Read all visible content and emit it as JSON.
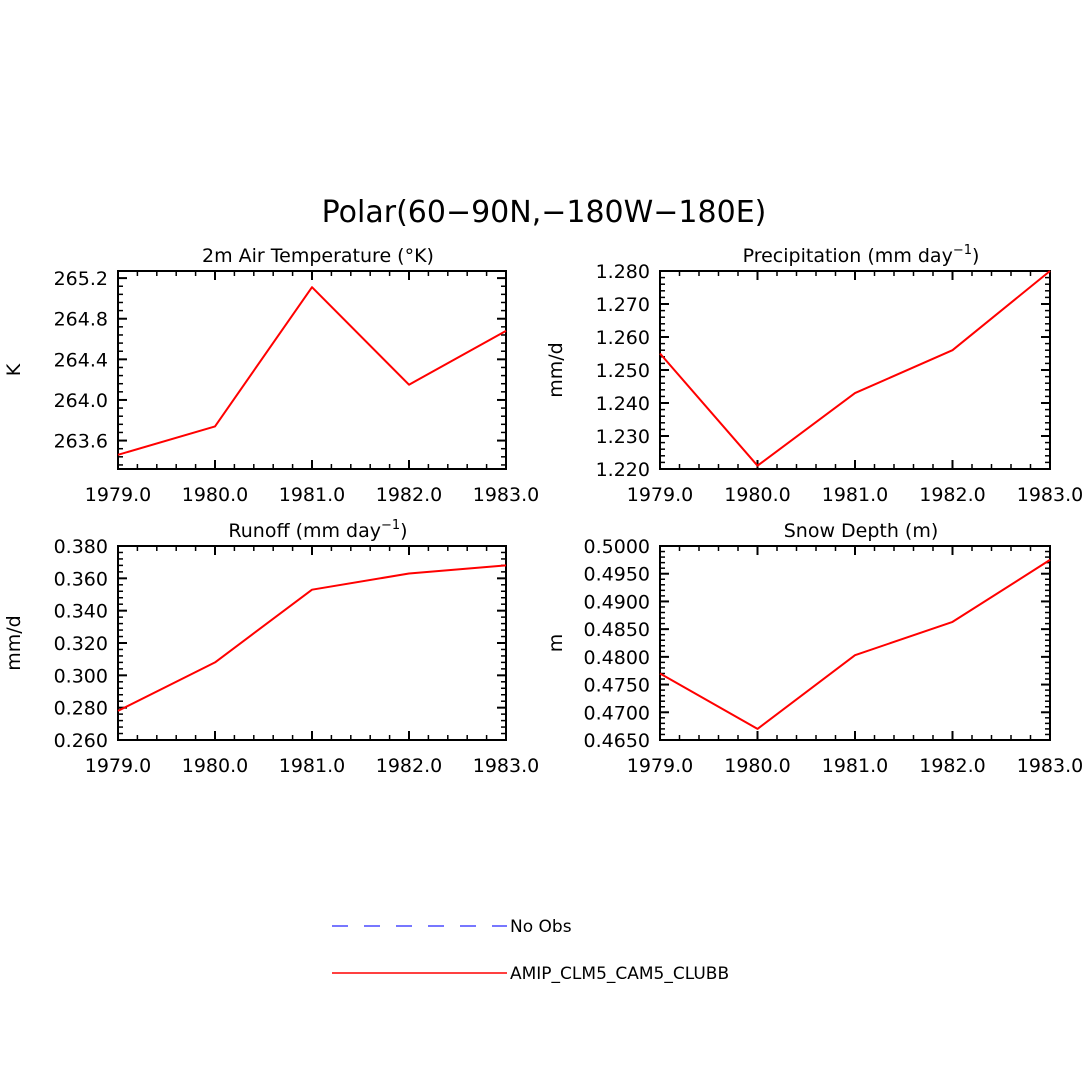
{
  "figure_title": "Polar(60−90N,−180W−180E)",
  "legend": {
    "items": [
      {
        "label": "No Obs",
        "color": "#4a4aff",
        "dash": "dashed"
      },
      {
        "label": "AMIP_CLM5_CAM5_CLUBB",
        "color": "#ff0000",
        "dash": "solid"
      }
    ]
  },
  "chart_data": [
    {
      "type": "line",
      "title": "2m Air Temperature (°K)",
      "title_sup": "",
      "title_tail": "",
      "ylabel": "K",
      "x": [
        1979.0,
        1980.0,
        1981.0,
        1982.0,
        1983.0
      ],
      "xticks": [
        "1979.0",
        "1980.0",
        "1981.0",
        "1982.0",
        "1983.0"
      ],
      "xlim": [
        1979.0,
        1983.0
      ],
      "ylim": [
        263.32,
        265.27
      ],
      "yticks": [
        263.6,
        264.0,
        264.4,
        264.8,
        265.2
      ],
      "ytick_labels": [
        "263.6",
        "264.0",
        "264.4",
        "264.8",
        "265.2"
      ],
      "series": [
        {
          "name": "AMIP_CLM5_CAM5_CLUBB",
          "color": "#ff0000",
          "values": [
            263.46,
            263.74,
            265.11,
            264.15,
            264.68
          ]
        }
      ]
    },
    {
      "type": "line",
      "title": "Precipitation (mm day",
      "title_sup": "−1",
      "title_tail": ")",
      "ylabel": "mm/d",
      "x": [
        1979.0,
        1980.0,
        1981.0,
        1982.0,
        1983.0
      ],
      "xticks": [
        "1979.0",
        "1980.0",
        "1981.0",
        "1982.0",
        "1983.0"
      ],
      "xlim": [
        1979.0,
        1983.0
      ],
      "ylim": [
        1.22,
        1.28
      ],
      "yticks": [
        1.22,
        1.23,
        1.24,
        1.25,
        1.26,
        1.27,
        1.28
      ],
      "ytick_labels": [
        "1.220",
        "1.230",
        "1.240",
        "1.250",
        "1.260",
        "1.270",
        "1.280"
      ],
      "series": [
        {
          "name": "AMIP_CLM5_CAM5_CLUBB",
          "color": "#ff0000",
          "values": [
            1.255,
            1.221,
            1.243,
            1.256,
            1.28
          ]
        }
      ]
    },
    {
      "type": "line",
      "title": "Runoff (mm day",
      "title_sup": "−1",
      "title_tail": ")",
      "ylabel": "mm/d",
      "x": [
        1979.0,
        1980.0,
        1981.0,
        1982.0,
        1983.0
      ],
      "xticks": [
        "1979.0",
        "1980.0",
        "1981.0",
        "1982.0",
        "1983.0"
      ],
      "xlim": [
        1979.0,
        1983.0
      ],
      "ylim": [
        0.26,
        0.38
      ],
      "yticks": [
        0.26,
        0.28,
        0.3,
        0.32,
        0.34,
        0.36,
        0.38
      ],
      "ytick_labels": [
        "0.260",
        "0.280",
        "0.300",
        "0.320",
        "0.340",
        "0.360",
        "0.380"
      ],
      "series": [
        {
          "name": "AMIP_CLM5_CAM5_CLUBB",
          "color": "#ff0000",
          "values": [
            0.278,
            0.308,
            0.353,
            0.363,
            0.368
          ]
        }
      ]
    },
    {
      "type": "line",
      "title": "Snow Depth (m)",
      "title_sup": "",
      "title_tail": "",
      "ylabel": "m",
      "x": [
        1979.0,
        1980.0,
        1981.0,
        1982.0,
        1983.0
      ],
      "xticks": [
        "1979.0",
        "1980.0",
        "1981.0",
        "1982.0",
        "1983.0"
      ],
      "xlim": [
        1979.0,
        1983.0
      ],
      "ylim": [
        0.465,
        0.5
      ],
      "yticks": [
        0.465,
        0.47,
        0.475,
        0.48,
        0.485,
        0.49,
        0.495,
        0.5
      ],
      "ytick_labels": [
        "0.4650",
        "0.4700",
        "0.4750",
        "0.4800",
        "0.4850",
        "0.4900",
        "0.4950",
        "0.5000"
      ],
      "series": [
        {
          "name": "AMIP_CLM5_CAM5_CLUBB",
          "color": "#ff0000",
          "values": [
            0.477,
            0.467,
            0.4803,
            0.4863,
            0.4975
          ]
        }
      ]
    }
  ]
}
